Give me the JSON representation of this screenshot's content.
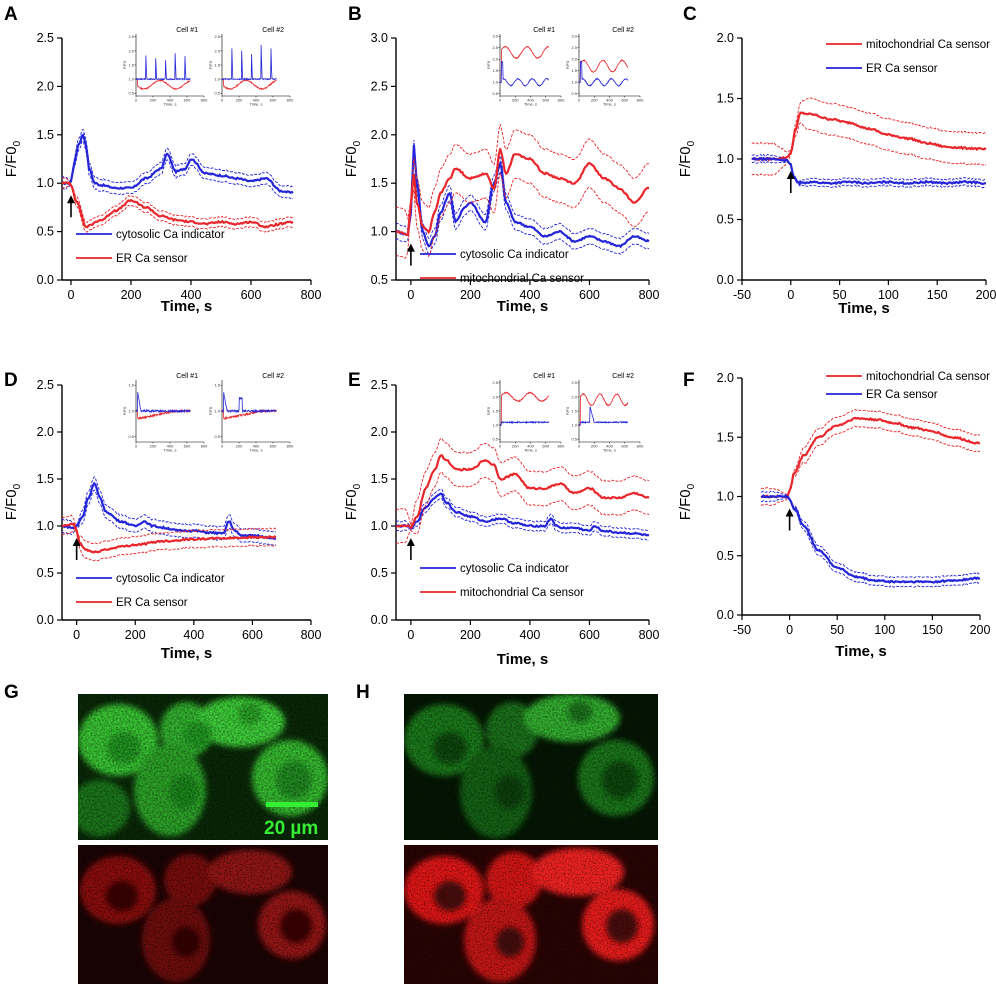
{
  "figure": {
    "colors": {
      "red": "#e8262b",
      "blue": "#2424d8",
      "green_channel": "#22cc22",
      "red_channel": "#d01010",
      "black": "#000000"
    },
    "image_panels": {
      "G": {
        "label": "G",
        "top_channel": "green",
        "bottom_channel": "red",
        "scale_bar_label": "20 µm"
      },
      "H": {
        "label": "H",
        "top_channel": "green",
        "bottom_channel": "red"
      }
    },
    "insets": {
      "cell1": "Cell #1",
      "cell2": "Cell #2",
      "xlabel": "Time, s",
      "ylabel": "F/F0"
    }
  },
  "chart_data": [
    {
      "panel": "A",
      "type": "line",
      "title": "",
      "xlabel": "Time, s",
      "ylabel": "F/F0",
      "y_sub": "0",
      "xlim": [
        -30,
        800
      ],
      "ylim": [
        0.0,
        2.5
      ],
      "xticks": [
        0,
        200,
        400,
        600,
        800
      ],
      "yticks": [
        0.0,
        0.5,
        1.0,
        1.5,
        2.0,
        2.5
      ],
      "ytick_labels": [
        "0.0",
        "0.5",
        "1.0",
        "1.5",
        "2.0",
        "2.5"
      ],
      "legend_position": "bottom-left",
      "arrow_x": 0,
      "series": [
        {
          "name": "cytosolic Ca indicator",
          "color": "#2424d8",
          "band": 0.06,
          "x": [
            -30,
            -5,
            0,
            10,
            25,
            40,
            50,
            60,
            80,
            100,
            150,
            200,
            250,
            300,
            320,
            350,
            380,
            400,
            450,
            500,
            550,
            600,
            650,
            700,
            740
          ],
          "y": [
            1.0,
            1.0,
            1.02,
            1.2,
            1.4,
            1.5,
            1.4,
            1.15,
            1.0,
            0.98,
            0.95,
            0.95,
            1.05,
            1.15,
            1.3,
            1.12,
            1.15,
            1.25,
            1.1,
            1.08,
            1.05,
            1.02,
            1.05,
            0.92,
            0.9
          ]
        },
        {
          "name": "ER Ca sensor",
          "color": "#e8262b",
          "band": 0.05,
          "x": [
            -30,
            -5,
            0,
            20,
            50,
            100,
            150,
            200,
            250,
            300,
            350,
            400,
            450,
            500,
            550,
            600,
            650,
            700,
            740
          ],
          "y": [
            1.0,
            1.0,
            0.98,
            0.8,
            0.55,
            0.62,
            0.72,
            0.82,
            0.75,
            0.66,
            0.62,
            0.6,
            0.58,
            0.6,
            0.58,
            0.6,
            0.55,
            0.58,
            0.6
          ]
        }
      ],
      "inset": {
        "xticks": [
          0,
          200,
          400,
          600,
          800
        ],
        "yticks": [
          0.5,
          1.0,
          1.5,
          2.0,
          2.5
        ],
        "ymin": 0.4,
        "ymax": 2.6,
        "pattern": "A"
      }
    },
    {
      "panel": "B",
      "type": "line",
      "title": "",
      "xlabel": "Time, s",
      "ylabel": "F/F0",
      "y_sub": "0",
      "xlim": [
        -50,
        800
      ],
      "ylim": [
        0.5,
        3.0
      ],
      "xticks": [
        0,
        200,
        400,
        600,
        800
      ],
      "yticks": [
        0.5,
        1.0,
        1.5,
        2.0,
        2.5,
        3.0
      ],
      "ytick_labels": [
        "0.5",
        "1.0",
        "1.5",
        "2.0",
        "2.5",
        "3.0"
      ],
      "legend_position": "bottom-left",
      "arrow_x": 0,
      "series": [
        {
          "name": "cytosolic Ca indicator",
          "color": "#2424d8",
          "band": 0.08,
          "x": [
            -50,
            -10,
            0,
            10,
            20,
            40,
            60,
            80,
            100,
            130,
            150,
            180,
            200,
            250,
            280,
            300,
            320,
            350,
            400,
            450,
            500,
            550,
            600,
            650,
            700,
            750,
            800
          ],
          "y": [
            1.0,
            0.97,
            1.2,
            1.9,
            1.5,
            1.0,
            0.85,
            0.95,
            1.2,
            1.4,
            1.1,
            1.25,
            1.3,
            1.1,
            1.5,
            1.7,
            1.3,
            1.1,
            1.05,
            0.95,
            1.0,
            0.9,
            0.95,
            0.9,
            0.85,
            0.95,
            0.9
          ]
        },
        {
          "name": "mitochondrial Ca sensor",
          "color": "#e8262b",
          "band": 0.25,
          "x": [
            -50,
            -10,
            0,
            10,
            20,
            40,
            60,
            80,
            100,
            130,
            150,
            200,
            250,
            280,
            300,
            320,
            350,
            400,
            450,
            500,
            550,
            600,
            650,
            700,
            750,
            800
          ],
          "y": [
            1.0,
            0.97,
            1.3,
            1.6,
            1.3,
            1.05,
            1.0,
            1.2,
            1.4,
            1.55,
            1.65,
            1.55,
            1.6,
            1.45,
            1.85,
            1.6,
            1.8,
            1.75,
            1.6,
            1.55,
            1.5,
            1.7,
            1.55,
            1.45,
            1.3,
            1.45
          ]
        }
      ],
      "inset": {
        "xticks": [
          0,
          200,
          400,
          600,
          800
        ],
        "yticks": [
          0.5,
          1.0,
          1.5,
          2.0,
          2.5,
          3.0
        ],
        "ymin": 0.4,
        "ymax": 3.1,
        "pattern": "B"
      }
    },
    {
      "panel": "C",
      "type": "line",
      "title": "",
      "xlabel": "Time, s",
      "ylabel": "F/F0",
      "y_sub": "0",
      "xlim": [
        -50,
        200
      ],
      "ylim": [
        0.0,
        2.0
      ],
      "xticks": [
        -50,
        0,
        50,
        100,
        150,
        200
      ],
      "yticks": [
        0.0,
        0.5,
        1.0,
        1.5,
        2.0
      ],
      "ytick_labels": [
        "0.0",
        "0.5",
        "1.0",
        "1.5",
        "2.0"
      ],
      "legend_position": "top-right",
      "arrow_x": 0,
      "series": [
        {
          "name": "mitochondrial Ca sensor",
          "color": "#e8262b",
          "band": 0.13,
          "x": [
            -40,
            -20,
            -5,
            0,
            5,
            10,
            20,
            40,
            60,
            80,
            100,
            120,
            140,
            160,
            180,
            200
          ],
          "y": [
            1.0,
            1.0,
            1.01,
            1.05,
            1.25,
            1.38,
            1.37,
            1.33,
            1.3,
            1.25,
            1.2,
            1.17,
            1.13,
            1.1,
            1.09,
            1.08
          ]
        },
        {
          "name": "ER Ca sensor",
          "color": "#2424d8",
          "band": 0.03,
          "x": [
            -40,
            -20,
            -5,
            0,
            3,
            8,
            20,
            40,
            60,
            80,
            100,
            120,
            140,
            160,
            180,
            200
          ],
          "y": [
            1.0,
            1.0,
            0.99,
            0.95,
            0.85,
            0.8,
            0.81,
            0.8,
            0.81,
            0.8,
            0.81,
            0.8,
            0.81,
            0.8,
            0.81,
            0.8
          ]
        }
      ]
    },
    {
      "panel": "D",
      "type": "line",
      "title": "",
      "xlabel": "Time, s",
      "ylabel": "F/F0",
      "y_sub": "0",
      "xlim": [
        -50,
        800
      ],
      "ylim": [
        0.0,
        2.5
      ],
      "xticks": [
        0,
        200,
        400,
        600,
        800
      ],
      "yticks": [
        0.0,
        0.5,
        1.0,
        1.5,
        2.0,
        2.5
      ],
      "ytick_labels": [
        "0.0",
        "0.5",
        "1.0",
        "1.5",
        "2.0",
        "2.5"
      ],
      "legend_position": "bottom-left",
      "arrow_x": 0,
      "series": [
        {
          "name": "cytosolic Ca indicator",
          "color": "#2424d8",
          "band": 0.07,
          "x": [
            -50,
            -10,
            0,
            20,
            40,
            60,
            80,
            100,
            150,
            200,
            230,
            260,
            300,
            350,
            400,
            450,
            500,
            520,
            540,
            560,
            600,
            650,
            680
          ],
          "y": [
            1.0,
            0.98,
            1.0,
            1.1,
            1.3,
            1.45,
            1.3,
            1.15,
            1.05,
            1.0,
            1.05,
            1.0,
            0.98,
            0.95,
            0.95,
            0.93,
            0.92,
            1.05,
            0.95,
            0.9,
            0.9,
            0.88,
            0.87
          ]
        },
        {
          "name": "ER Ca sensor",
          "color": "#e8262b",
          "band": 0.09,
          "x": [
            -50,
            -10,
            0,
            10,
            30,
            60,
            100,
            150,
            200,
            300,
            400,
            500,
            600,
            680
          ],
          "y": [
            1.0,
            1.02,
            0.95,
            0.82,
            0.75,
            0.72,
            0.75,
            0.78,
            0.8,
            0.84,
            0.86,
            0.87,
            0.88,
            0.88
          ]
        }
      ],
      "inset": {
        "xticks": [
          0,
          200,
          400,
          600,
          800
        ],
        "yticks": [
          0.5,
          1.0,
          1.5
        ],
        "ymin": 0.4,
        "ymax": 1.6,
        "pattern": "D"
      }
    },
    {
      "panel": "E",
      "type": "line",
      "title": "",
      "xlabel": "Time, s",
      "ylabel": "F/F0",
      "y_sub": "0",
      "xlim": [
        -50,
        800
      ],
      "ylim": [
        0.0,
        2.5
      ],
      "xticks": [
        0,
        200,
        400,
        600,
        800
      ],
      "yticks": [
        0.0,
        0.5,
        1.0,
        1.5,
        2.0,
        2.5
      ],
      "ytick_labels": [
        "0.0",
        "0.5",
        "1.0",
        "1.5",
        "2.0",
        "2.5"
      ],
      "legend_position": "bottom-left",
      "arrow_x": 0,
      "series": [
        {
          "name": "cytosolic Ca indicator",
          "color": "#2424d8",
          "band": 0.05,
          "x": [
            -50,
            -10,
            0,
            20,
            50,
            80,
            100,
            120,
            150,
            200,
            250,
            300,
            350,
            400,
            450,
            470,
            490,
            500,
            550,
            600,
            620,
            640,
            700,
            750,
            800
          ],
          "y": [
            1.0,
            1.0,
            0.97,
            1.05,
            1.2,
            1.3,
            1.35,
            1.25,
            1.15,
            1.1,
            1.05,
            1.08,
            1.03,
            1.0,
            1.0,
            1.08,
            1.0,
            0.98,
            0.98,
            0.95,
            1.0,
            0.95,
            0.93,
            0.92,
            0.9
          ]
        },
        {
          "name": "mitochondrial Ca sensor",
          "color": "#e8262b",
          "band": 0.18,
          "x": [
            -50,
            -10,
            0,
            20,
            50,
            80,
            100,
            120,
            150,
            200,
            250,
            280,
            300,
            350,
            400,
            450,
            500,
            550,
            600,
            650,
            700,
            750,
            800
          ],
          "y": [
            1.0,
            1.0,
            0.98,
            1.1,
            1.4,
            1.6,
            1.75,
            1.7,
            1.6,
            1.6,
            1.7,
            1.65,
            1.5,
            1.55,
            1.4,
            1.4,
            1.45,
            1.35,
            1.4,
            1.3,
            1.3,
            1.35,
            1.3
          ]
        }
      ],
      "inset": {
        "xticks": [
          0,
          200,
          400,
          600,
          800
        ],
        "yticks": [
          0.5,
          1.0,
          1.5,
          2.0,
          2.5
        ],
        "ymin": 0.4,
        "ymax": 2.6,
        "pattern": "E"
      }
    },
    {
      "panel": "F",
      "type": "line",
      "title": "",
      "xlabel": "Time, s",
      "ylabel": "F/F0",
      "y_sub": "0",
      "xlim": [
        -50,
        200
      ],
      "ylim": [
        0.0,
        2.0
      ],
      "xticks": [
        -50,
        0,
        50,
        100,
        150,
        200
      ],
      "yticks": [
        0.0,
        0.5,
        1.0,
        1.5,
        2.0
      ],
      "ytick_labels": [
        "0.0",
        "0.5",
        "1.0",
        "1.5",
        "2.0"
      ],
      "legend_position": "top-right",
      "arrow_x": 0,
      "series": [
        {
          "name": "mitochondrial Ca sensor",
          "color": "#e8262b",
          "band": 0.07,
          "x": [
            -30,
            -10,
            -2,
            0,
            5,
            15,
            30,
            50,
            70,
            90,
            110,
            130,
            150,
            170,
            200
          ],
          "y": [
            1.0,
            1.0,
            1.0,
            1.05,
            1.2,
            1.35,
            1.5,
            1.6,
            1.66,
            1.65,
            1.62,
            1.58,
            1.55,
            1.5,
            1.45
          ]
        },
        {
          "name": "ER Ca sensor",
          "color": "#2424d8",
          "band": 0.04,
          "x": [
            -30,
            -10,
            -2,
            0,
            5,
            15,
            30,
            50,
            70,
            90,
            110,
            130,
            150,
            170,
            200
          ],
          "y": [
            1.0,
            1.0,
            1.0,
            0.97,
            0.9,
            0.75,
            0.55,
            0.4,
            0.32,
            0.29,
            0.28,
            0.28,
            0.28,
            0.29,
            0.31
          ]
        }
      ]
    }
  ]
}
